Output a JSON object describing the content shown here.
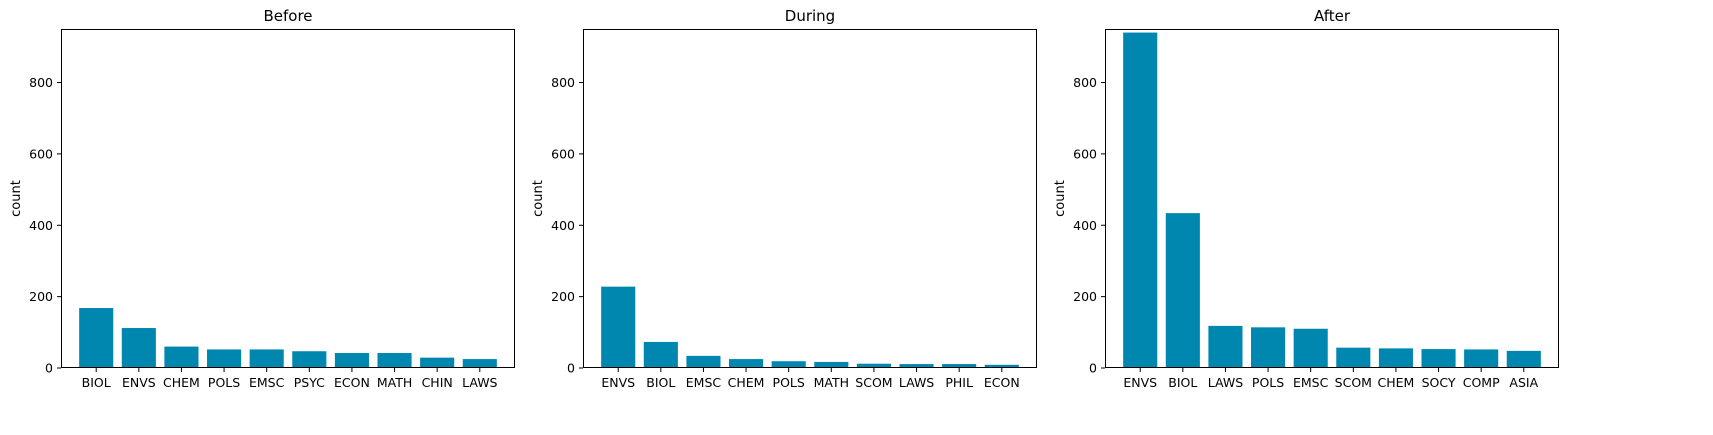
{
  "chart_data": [
    {
      "type": "bar",
      "title": "Before",
      "xlabel": "",
      "ylabel": "count",
      "ylim": [
        0,
        950
      ],
      "yticks": [
        0,
        200,
        400,
        600,
        800
      ],
      "grid": false,
      "color": "#0087b0",
      "categories": [
        "BIOL",
        "ENVS",
        "CHEM",
        "POLS",
        "EMSC",
        "PSYC",
        "ECON",
        "MATH",
        "CHIN",
        "LAWS"
      ],
      "values": [
        168,
        112,
        60,
        52,
        52,
        47,
        42,
        42,
        29,
        25
      ]
    },
    {
      "type": "bar",
      "title": "During",
      "xlabel": "",
      "ylabel": "count",
      "ylim": [
        0,
        950
      ],
      "yticks": [
        0,
        200,
        400,
        600,
        800
      ],
      "grid": false,
      "color": "#0087b0",
      "categories": [
        "ENVS",
        "BIOL",
        "EMSC",
        "CHEM",
        "POLS",
        "MATH",
        "SCOM",
        "LAWS",
        "PHIL",
        "ECON"
      ],
      "values": [
        228,
        73,
        34,
        25,
        19,
        17,
        12,
        11,
        11,
        9
      ]
    },
    {
      "type": "bar",
      "title": "After",
      "xlabel": "",
      "ylabel": "count",
      "ylim": [
        0,
        950
      ],
      "yticks": [
        0,
        200,
        400,
        600,
        800
      ],
      "grid": false,
      "color": "#0087b0",
      "categories": [
        "ENVS",
        "BIOL",
        "LAWS",
        "POLS",
        "EMSC",
        "SCOM",
        "CHEM",
        "SOCY",
        "COMP",
        "ASIA"
      ],
      "values": [
        940,
        434,
        118,
        114,
        110,
        57,
        55,
        53,
        52,
        48
      ]
    }
  ]
}
